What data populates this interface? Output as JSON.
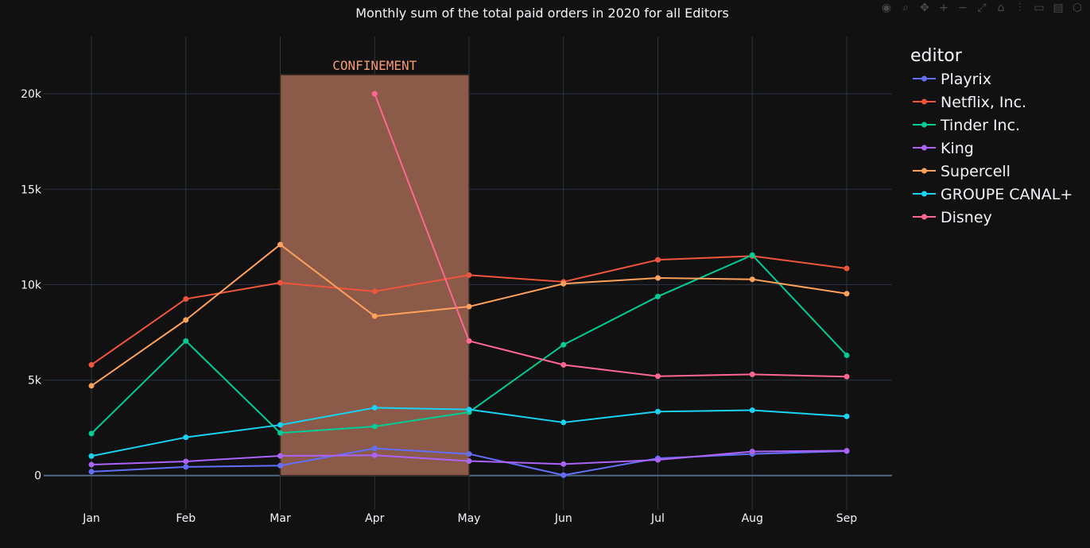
{
  "chart_data": {
    "type": "line",
    "title": "Monthly sum of the total paid orders in 2020 for all Editors",
    "xlabel": "",
    "ylabel": "",
    "categories": [
      "Jan",
      "Feb",
      "Mar",
      "Apr",
      "May",
      "Jun",
      "Jul",
      "Aug",
      "Sep"
    ],
    "ylim": [
      -1800,
      23000
    ],
    "yticks": [
      0,
      5000,
      10000,
      15000,
      20000
    ],
    "ytick_labels": [
      "0",
      "5k",
      "10k",
      "15k",
      "20k"
    ],
    "grid": true,
    "legend_title": "editor",
    "legend_position": "right",
    "series": [
      {
        "name": "Playrix",
        "color": "#636efa",
        "values": [
          200,
          450,
          520,
          1420,
          1130,
          20,
          900,
          1130,
          1280
        ]
      },
      {
        "name": "Netflix, Inc.",
        "color": "#ef553b",
        "values": [
          5800,
          9250,
          10100,
          9650,
          10500,
          10150,
          11300,
          11500,
          10850
        ]
      },
      {
        "name": "Tinder Inc.",
        "color": "#00cc96",
        "values": [
          2200,
          7050,
          2230,
          2570,
          3320,
          6850,
          9380,
          11550,
          6300
        ]
      },
      {
        "name": "King",
        "color": "#ab63fa",
        "values": [
          570,
          740,
          1030,
          1060,
          760,
          600,
          820,
          1260,
          1300
        ]
      },
      {
        "name": "Supercell",
        "color": "#ffa15a",
        "values": [
          4700,
          8150,
          12100,
          8350,
          8850,
          10050,
          10350,
          10280,
          9530
        ]
      },
      {
        "name": "GROUPE CANAL+",
        "color": "#19d3f3",
        "values": [
          1020,
          2000,
          2650,
          3550,
          3460,
          2780,
          3350,
          3420,
          3100
        ]
      },
      {
        "name": "Disney",
        "color": "#ff6692",
        "values": [
          null,
          null,
          null,
          20000,
          7050,
          5800,
          5200,
          5300,
          5180
        ]
      }
    ],
    "annotations": [
      {
        "text": "CONFINEMENT",
        "x_start": "Mar",
        "x_end": "May",
        "y_top": 21000,
        "color": "#f79b72",
        "fill": "#8b5a48"
      }
    ]
  }
}
